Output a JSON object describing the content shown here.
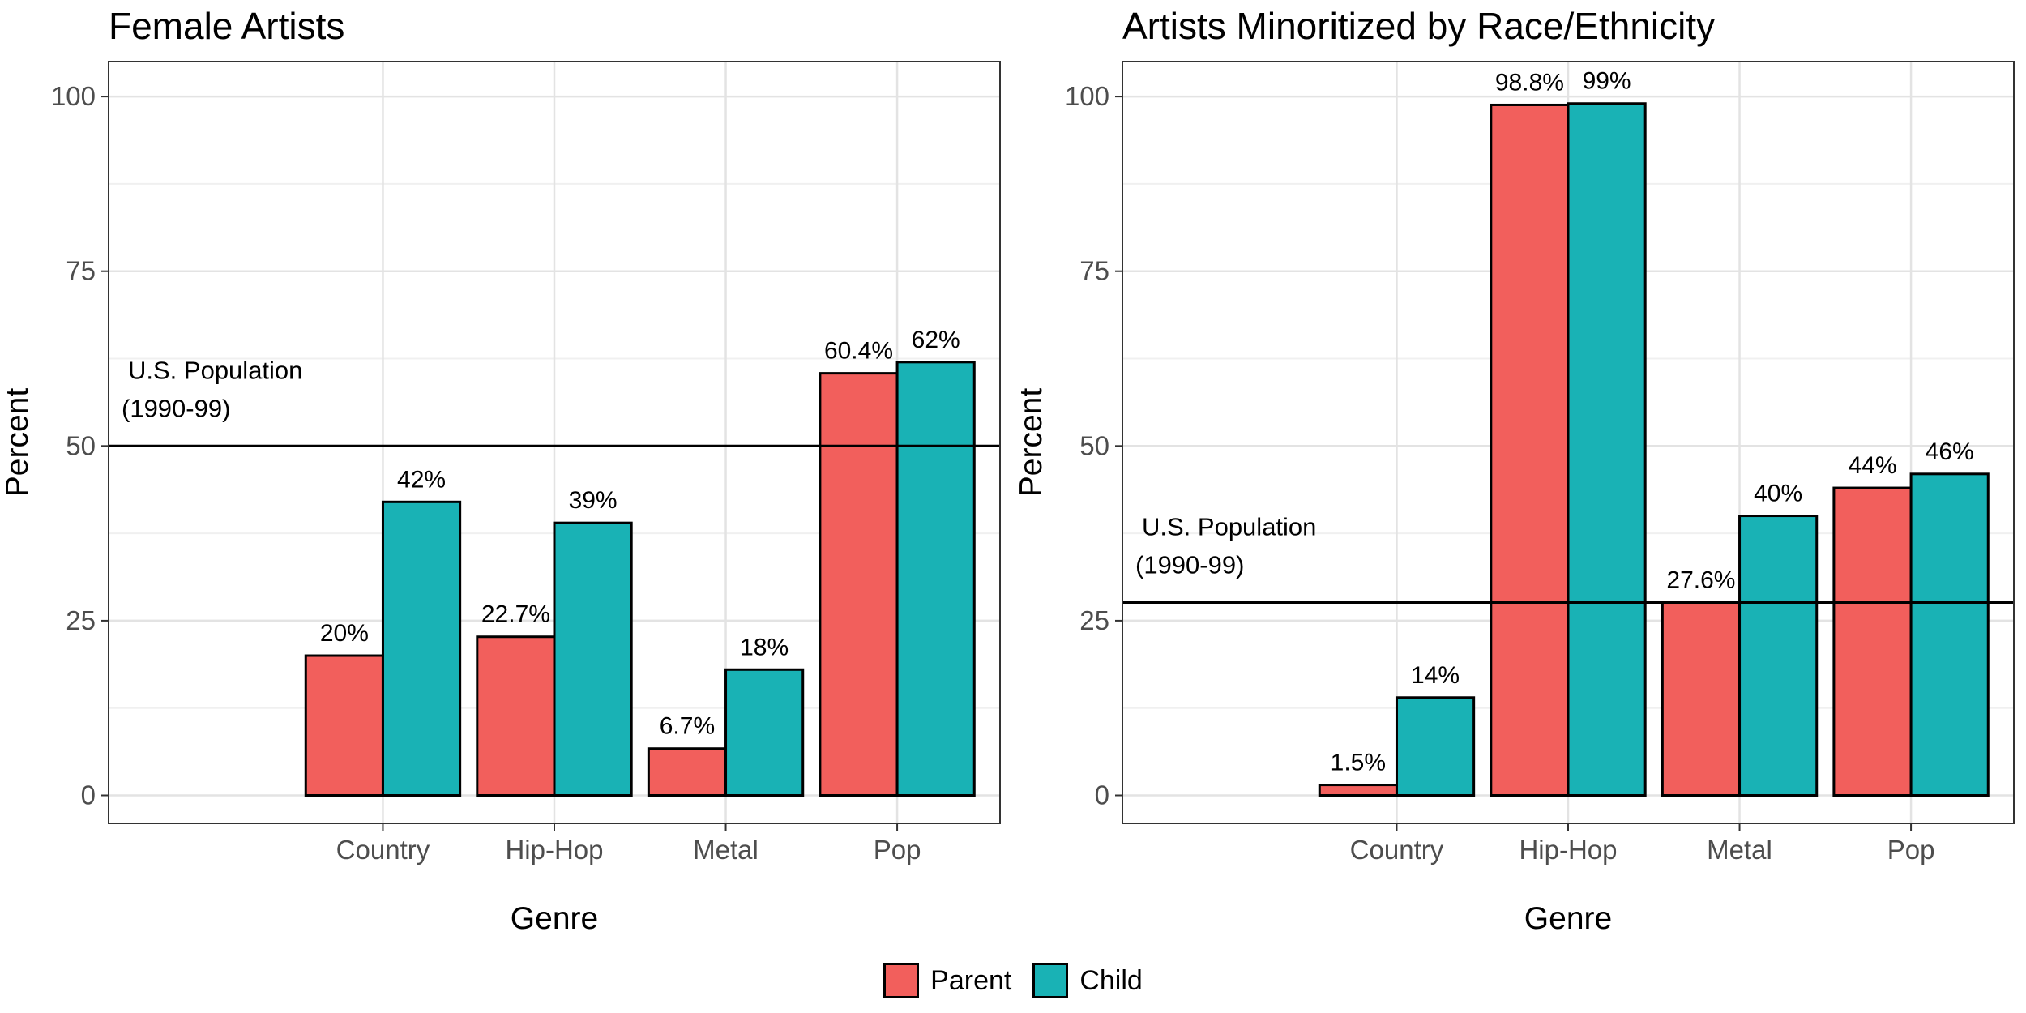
{
  "chart_data": [
    {
      "type": "bar",
      "title": "Female Artists",
      "xlabel": "Genre",
      "ylabel": "Percent",
      "ylim": [
        -4,
        105
      ],
      "yticks": [
        0,
        25,
        50,
        75,
        100
      ],
      "grid": true,
      "categories": [
        "Country",
        "Hip-Hop",
        "Metal",
        "Pop"
      ],
      "series": [
        {
          "name": "Parent",
          "values": [
            20,
            22.7,
            6.7,
            60.4
          ],
          "labels": [
            "20%",
            "22.7%",
            "6.7%",
            "60.4%"
          ],
          "color": "#F25F5C"
        },
        {
          "name": "Child",
          "values": [
            42,
            39,
            18,
            62
          ],
          "labels": [
            "42%",
            "39%",
            "18%",
            "62%"
          ],
          "color": "#19B2B5"
        }
      ],
      "reference_line": {
        "value": 50,
        "label_line1": "U.S. Population",
        "label_line2": "(1990-99)"
      }
    },
    {
      "type": "bar",
      "title": "Artists Minoritized by Race/Ethnicity",
      "xlabel": "Genre",
      "ylabel": "Percent",
      "ylim": [
        -4,
        105
      ],
      "yticks": [
        0,
        25,
        50,
        75,
        100
      ],
      "grid": true,
      "categories": [
        "Country",
        "Hip-Hop",
        "Metal",
        "Pop"
      ],
      "series": [
        {
          "name": "Parent",
          "values": [
            1.5,
            98.8,
            27.6,
            44
          ],
          "labels": [
            "1.5%",
            "98.8%",
            "27.6%",
            "44%"
          ],
          "color": "#F25F5C"
        },
        {
          "name": "Child",
          "values": [
            14,
            99,
            40,
            46
          ],
          "labels": [
            "14%",
            "99%",
            "40%",
            "46%"
          ],
          "color": "#19B2B5"
        }
      ],
      "reference_line": {
        "value": 27.6,
        "label_line1": "U.S. Population",
        "label_line2": "(1990-99)"
      }
    }
  ],
  "legend": {
    "items": [
      {
        "label": "Parent",
        "color": "#F25F5C"
      },
      {
        "label": "Child",
        "color": "#19B2B5"
      }
    ]
  }
}
